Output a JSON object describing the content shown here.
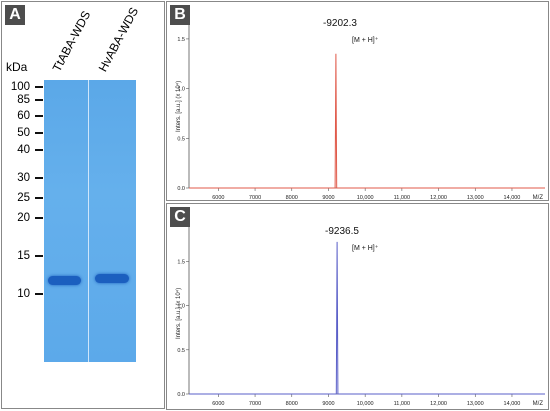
{
  "panel_a": {
    "label": "A",
    "unit": "kDa",
    "lanes": [
      "TtABA-WDS",
      "HvABA-WDS"
    ],
    "markers": [
      "100",
      "85",
      "60",
      "50",
      "40",
      "30",
      "25",
      "20",
      "15",
      "10"
    ],
    "marker_kda": [
      100,
      85,
      60,
      50,
      40,
      30,
      25,
      20,
      15,
      10
    ],
    "band_color": "#1b5fbf",
    "gel_color": "#5ba8e8"
  },
  "panel_b": {
    "label": "B",
    "peak_label": "-9202.3",
    "ion_label": "[M + H]⁺",
    "ylabel": "Inters. [a.u.] (x 10⁴)",
    "xlabel": "M/Z",
    "line_color": "#e05a4a"
  },
  "panel_c": {
    "label": "C",
    "peak_label": "-9236.5",
    "ion_label": "[M + H]⁺",
    "ylabel": "Inters. [a.u.] (x 10⁴)",
    "xlabel": "M/Z",
    "line_color": "#5a5fc8"
  },
  "chart_data": [
    {
      "type": "line",
      "series": [
        {
          "x": [
            5200,
            9180,
            9202.3,
            9225,
            14900
          ],
          "y": [
            0.0,
            0.0,
            1.35,
            0.0,
            0.0
          ]
        }
      ],
      "xticks": [
        "6000",
        "7000",
        "8000",
        "9000",
        "10,000",
        "11,000",
        "12,000",
        "13,000",
        "14,000"
      ],
      "xtick_values": [
        6000,
        7000,
        8000,
        9000,
        10000,
        11000,
        12000,
        13000,
        14000
      ],
      "yticks": [
        "0.0",
        "0.5",
        "1.0",
        "1.5"
      ],
      "ytick_values": [
        0,
        0.5,
        1.0,
        1.5
      ],
      "xlabel": "M/Z",
      "ylabel": "Inters. [a.u.] (x 10⁴)",
      "xlim": [
        5200,
        14900
      ],
      "ylim": [
        0,
        1.65
      ]
    },
    {
      "type": "line",
      "series": [
        {
          "x": [
            5200,
            9214,
            9236.5,
            9258,
            14900
          ],
          "y": [
            0.0,
            0.0,
            1.72,
            0.0,
            0.0
          ]
        }
      ],
      "xticks": [
        "6000",
        "7000",
        "8000",
        "9000",
        "10,000",
        "11,000",
        "12,000",
        "13,000",
        "14,000"
      ],
      "xtick_values": [
        6000,
        7000,
        8000,
        9000,
        10000,
        11000,
        12000,
        13000,
        14000
      ],
      "yticks": [
        "0.0",
        "0.5",
        "1.0",
        "1.5"
      ],
      "ytick_values": [
        0,
        0.5,
        1.0,
        1.5
      ],
      "xlabel": "M/Z",
      "ylabel": "Inters. [a.u.] (x 10⁴)",
      "xlim": [
        5200,
        14900
      ],
      "ylim": [
        0,
        1.9
      ]
    }
  ]
}
